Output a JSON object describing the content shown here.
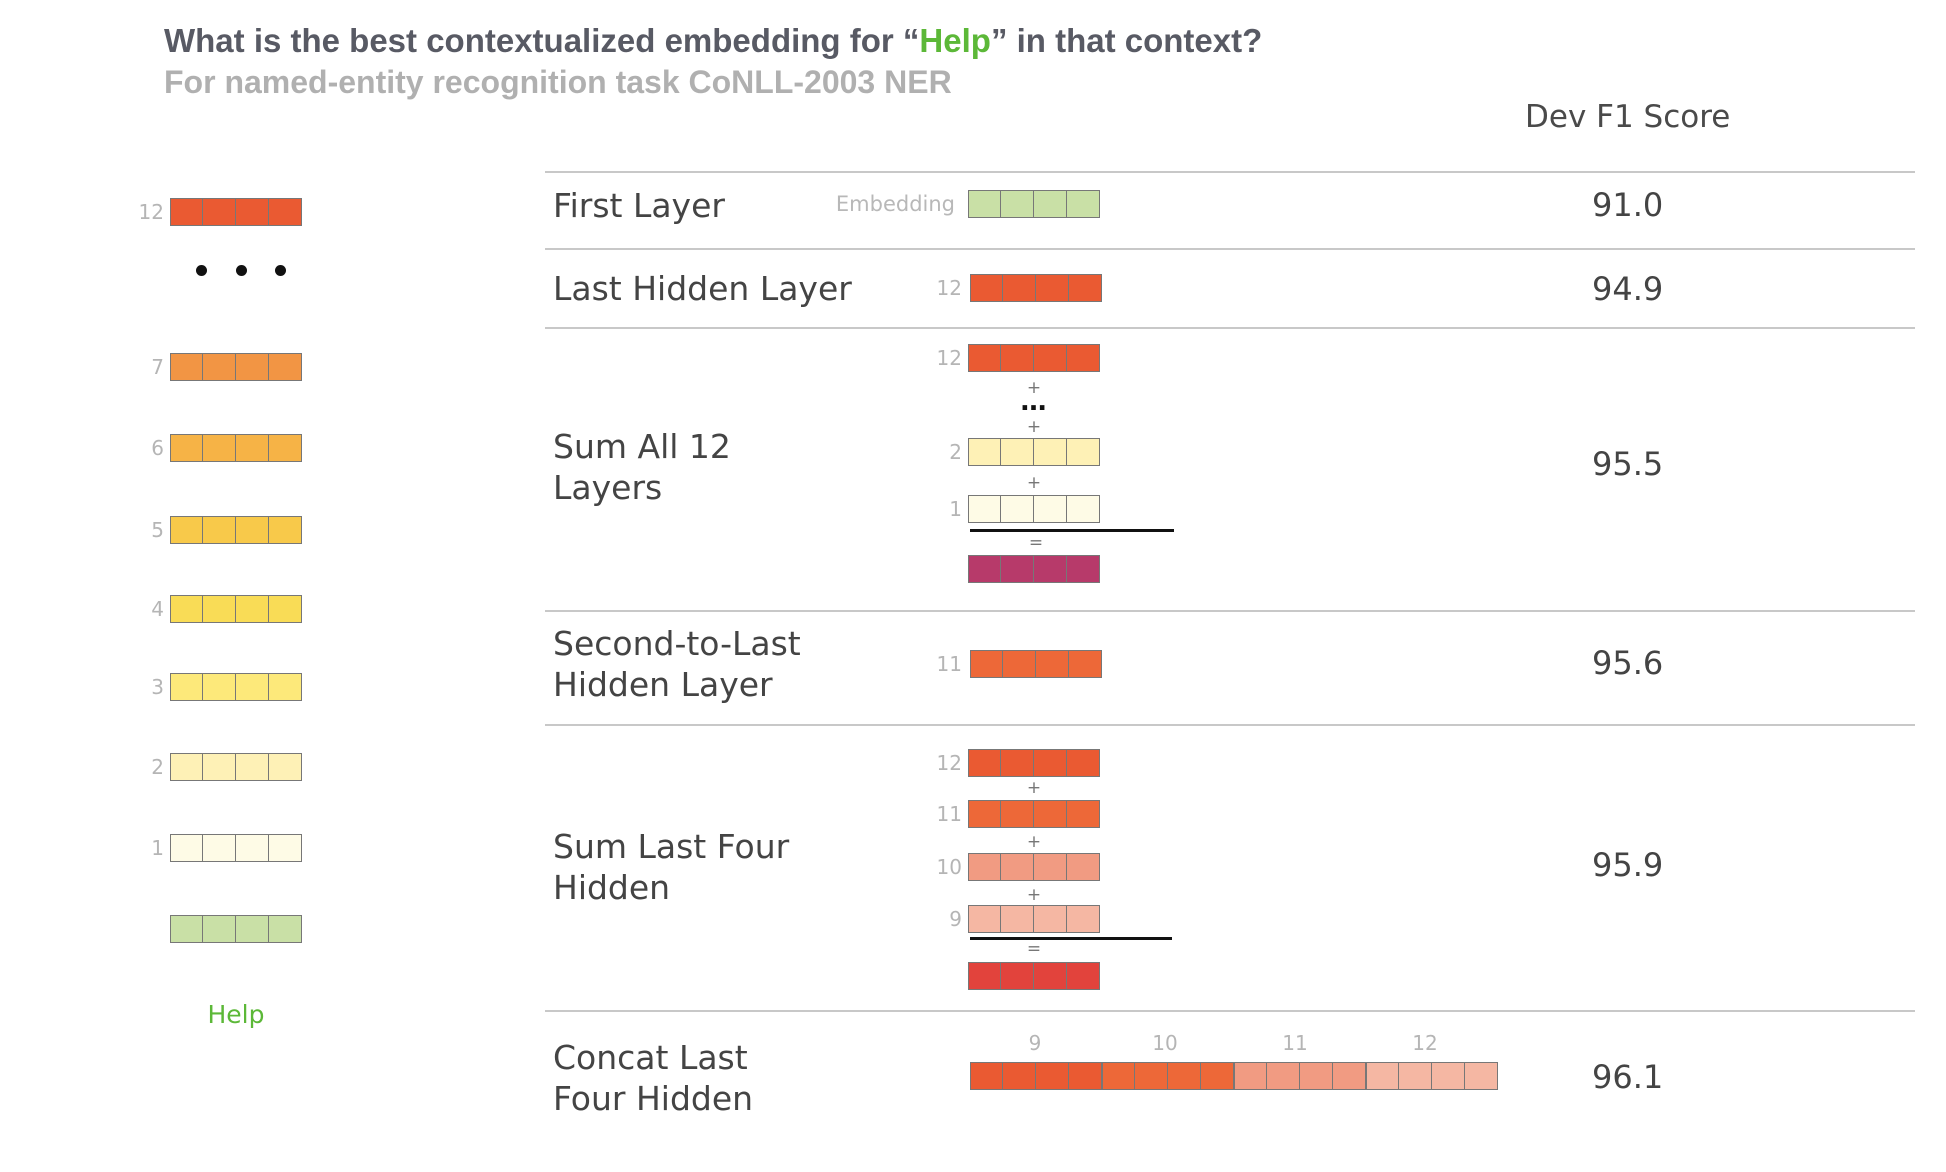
{
  "title": {
    "before": "What is the best contextualized embedding for “",
    "highlight": "Help",
    "after": "” in that context?"
  },
  "subtitle": "For named-entity recognition task CoNLL-2003 NER",
  "column_header": "Dev F1 Score",
  "colors": {
    "embedding": "#c9e0a6",
    "layer_1": "#fefbe6",
    "layer_2": "#fef1b6",
    "layer_3": "#fde97a",
    "layer_4": "#f9dc56",
    "layer_5": "#f8c94a",
    "layer_6": "#f6b346",
    "layer_7": "#f29544",
    "layer_9": "#f5b7a3",
    "layer_10": "#f19b82",
    "layer_11": "#ed6838",
    "layer_12": "#ea5a32",
    "sum_all": "#b73a6a",
    "sum_last_four": "#e2433c",
    "highlight_green": "#5cb838"
  },
  "stack": {
    "word": "Help",
    "layers": [
      {
        "num": "12",
        "color_key": "layer_12"
      },
      {
        "num": "7",
        "color_key": "layer_7"
      },
      {
        "num": "6",
        "color_key": "layer_6"
      },
      {
        "num": "5",
        "color_key": "layer_5"
      },
      {
        "num": "4",
        "color_key": "layer_4"
      },
      {
        "num": "3",
        "color_key": "layer_3"
      },
      {
        "num": "2",
        "color_key": "layer_2"
      },
      {
        "num": "1",
        "color_key": "layer_1"
      }
    ]
  },
  "rows": [
    {
      "label": "First Layer",
      "score": "91.0",
      "embedding_label": "Embedding"
    },
    {
      "label": "Last Hidden Layer",
      "score": "94.9",
      "layer_num": "12"
    },
    {
      "label": "Sum All 12\nLayers",
      "score": "95.5",
      "layer_nums": [
        "12",
        "2",
        "1"
      ],
      "plus": "+",
      "equals": "="
    },
    {
      "label": "Second-to-Last\nHidden Layer",
      "score": "95.6",
      "layer_num": "11"
    },
    {
      "label": "Sum Last Four\nHidden",
      "score": "95.9",
      "layer_nums": [
        "12",
        "11",
        "10",
        "9"
      ],
      "plus": "+",
      "equals": "="
    },
    {
      "label": "Concat Last\nFour Hidden",
      "score": "96.1",
      "layer_nums": [
        "9",
        "10",
        "11",
        "12"
      ]
    }
  ]
}
